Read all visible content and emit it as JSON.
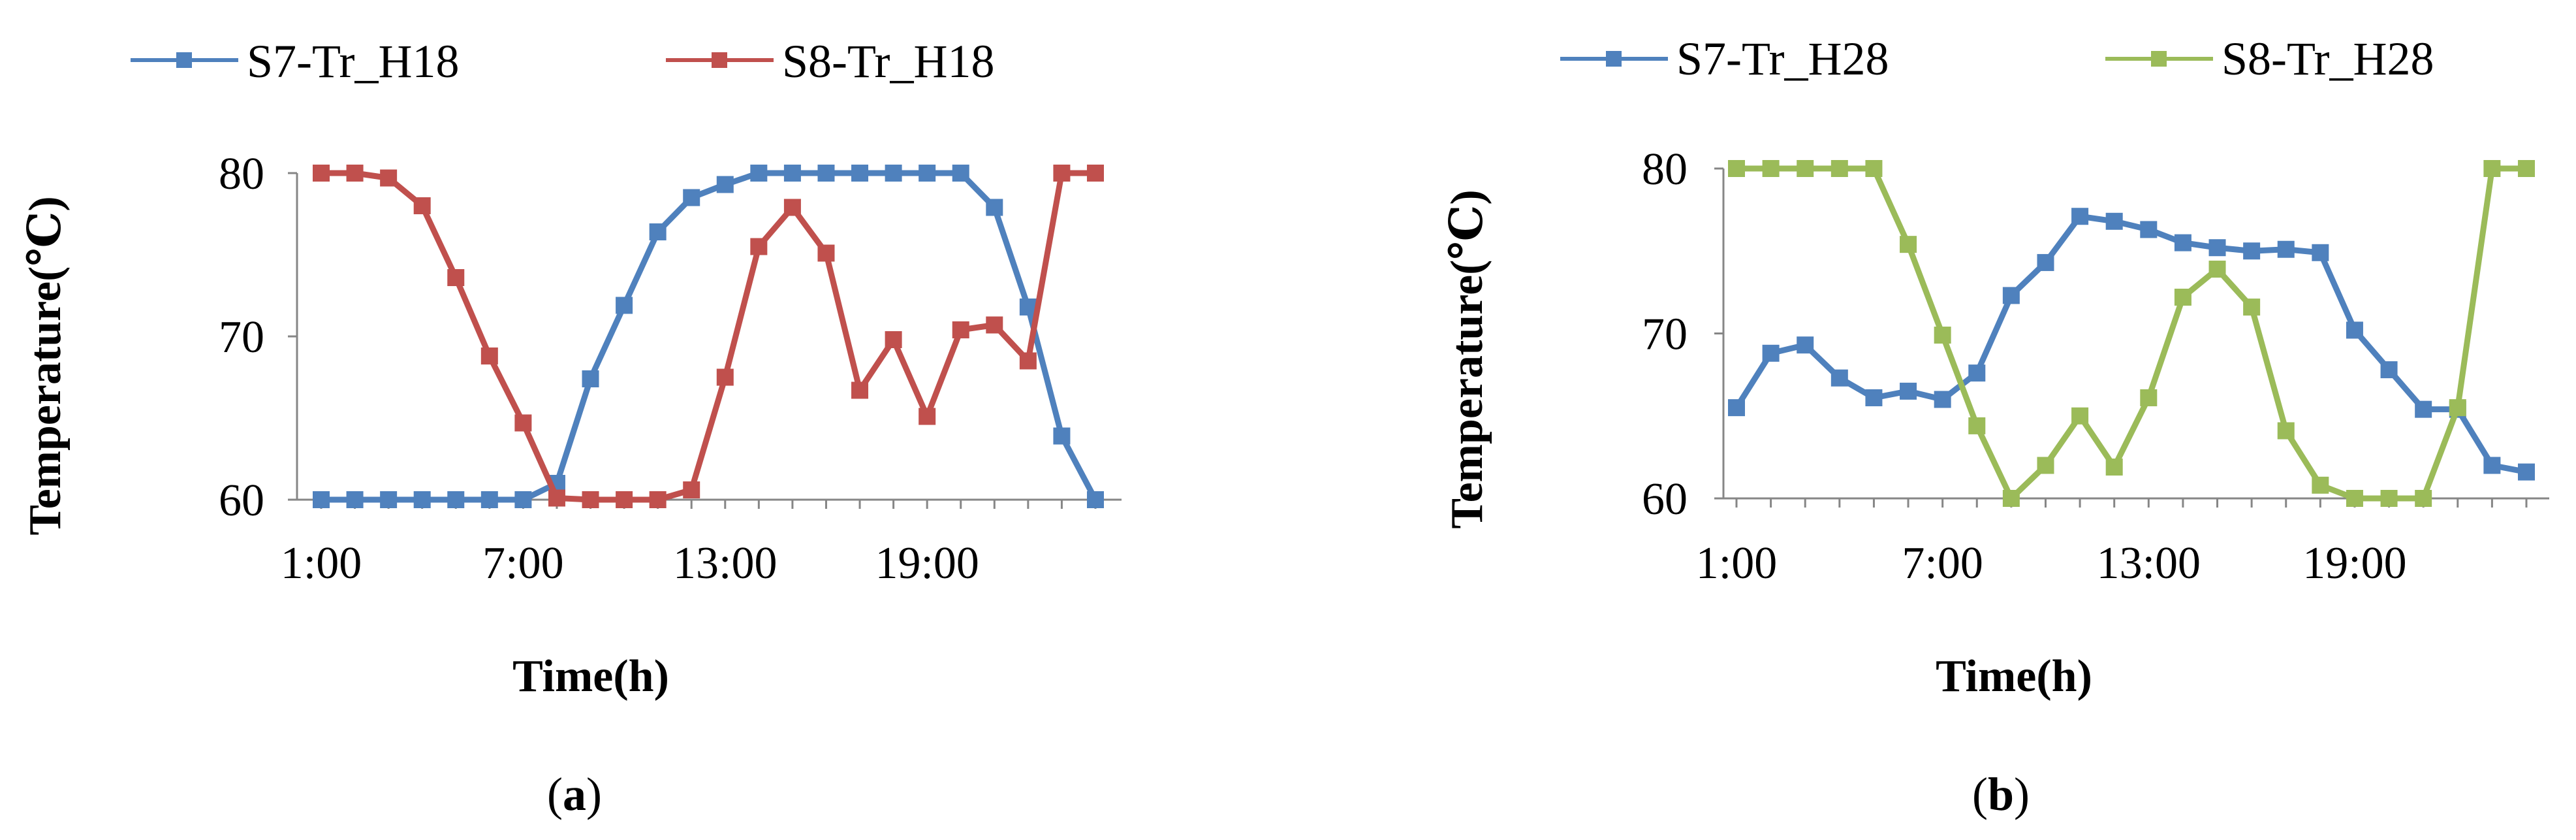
{
  "chart_data": [
    {
      "type": "line",
      "panel_label": "a",
      "xlabel": "Time(h)",
      "ylabel": "Temperature(℃)",
      "x": [
        1,
        2,
        3,
        4,
        5,
        6,
        7,
        8,
        9,
        10,
        11,
        12,
        13,
        14,
        15,
        16,
        17,
        18,
        19,
        20,
        21,
        22,
        23,
        24
      ],
      "x_ticks": [
        1,
        7,
        13,
        19
      ],
      "x_tick_labels": [
        "1:00",
        "7:00",
        "13:00",
        "19:00"
      ],
      "ylim": [
        60,
        80
      ],
      "y_ticks": [
        60,
        70,
        80
      ],
      "grid": false,
      "legend_position": "top",
      "series": [
        {
          "name": "S7-Tr_H18",
          "color": "#4F81BD",
          "values": [
            60,
            60,
            60,
            60,
            60,
            60,
            60,
            61,
            67.4,
            71.9,
            76.4,
            78.5,
            79.3,
            80,
            80,
            80,
            80,
            80,
            80,
            80,
            77.9,
            71.8,
            63.9,
            60
          ]
        },
        {
          "name": "S8-Tr_H18",
          "color": "#C0504D",
          "values": [
            80,
            80,
            79.7,
            78,
            73.6,
            68.8,
            64.7,
            60.1,
            60,
            60,
            60,
            60.6,
            67.5,
            75.5,
            77.9,
            75.1,
            66.7,
            69.8,
            65.1,
            70.4,
            70.7,
            68.5,
            80,
            80
          ]
        }
      ]
    },
    {
      "type": "line",
      "panel_label": "b",
      "xlabel": "Time(h)",
      "ylabel": "Temperature(℃)",
      "x": [
        1,
        2,
        3,
        4,
        5,
        6,
        7,
        8,
        9,
        10,
        11,
        12,
        13,
        14,
        15,
        16,
        17,
        18,
        19,
        20,
        21,
        22,
        23,
        24
      ],
      "x_ticks": [
        1,
        7,
        13,
        19
      ],
      "x_tick_labels": [
        "1:00",
        "7:00",
        "13:00",
        "19:00"
      ],
      "ylim": [
        60,
        80
      ],
      "y_ticks": [
        60,
        70,
        80
      ],
      "grid": false,
      "legend_position": "top",
      "series": [
        {
          "name": "S7-Tr_H28",
          "color": "#4F81BD",
          "values": [
            65.5,
            68.8,
            69.3,
            67.3,
            66.1,
            66.5,
            66,
            67.6,
            72.3,
            74.3,
            77.1,
            76.8,
            76.3,
            75.5,
            75.2,
            75,
            75.1,
            74.9,
            70.2,
            67.8,
            65.4,
            65.4,
            62,
            61.6
          ]
        },
        {
          "name": "S8-Tr_H28",
          "color": "#9BBB59",
          "values": [
            80,
            80,
            80,
            80,
            80,
            75.4,
            69.9,
            64.4,
            60,
            62,
            65,
            61.9,
            66.1,
            72.2,
            73.9,
            71.6,
            64.1,
            60.8,
            60,
            60,
            60,
            65.5,
            80,
            80
          ]
        }
      ]
    }
  ]
}
